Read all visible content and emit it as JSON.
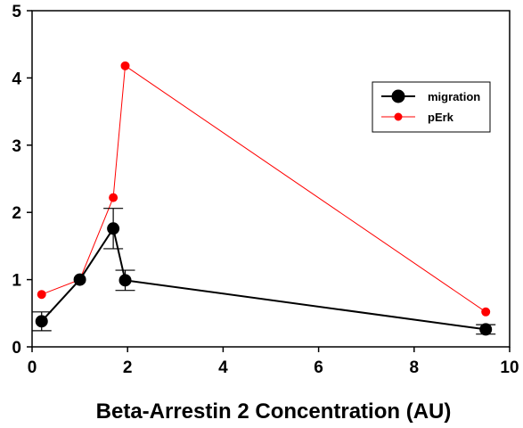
{
  "chart_data": {
    "type": "line",
    "title": "",
    "xlabel": "Beta-Arrestin 2 Concentration (AU)",
    "ylabel": "",
    "xlim": [
      0,
      10
    ],
    "ylim": [
      0,
      5
    ],
    "x_ticks": [
      "0",
      "2",
      "4",
      "6",
      "8",
      "10"
    ],
    "y_ticks": [
      "0",
      "1",
      "2",
      "3",
      "4",
      "5"
    ],
    "grid": false,
    "legend_position": "top-right",
    "series": [
      {
        "name": "pErk",
        "color": "#ff0000",
        "marker": "small-circle",
        "x": [
          0.2,
          1.0,
          1.7,
          1.95,
          9.5
        ],
        "y": [
          0.78,
          1.0,
          2.22,
          4.18,
          0.52
        ]
      },
      {
        "name": "migration",
        "color": "#000000",
        "marker": "large-circle",
        "x": [
          0.2,
          1.0,
          1.7,
          1.95,
          9.5
        ],
        "y": [
          0.38,
          1.0,
          1.76,
          0.99,
          0.26
        ],
        "error": [
          0.14,
          0.0,
          0.3,
          0.15,
          0.07
        ]
      }
    ]
  }
}
